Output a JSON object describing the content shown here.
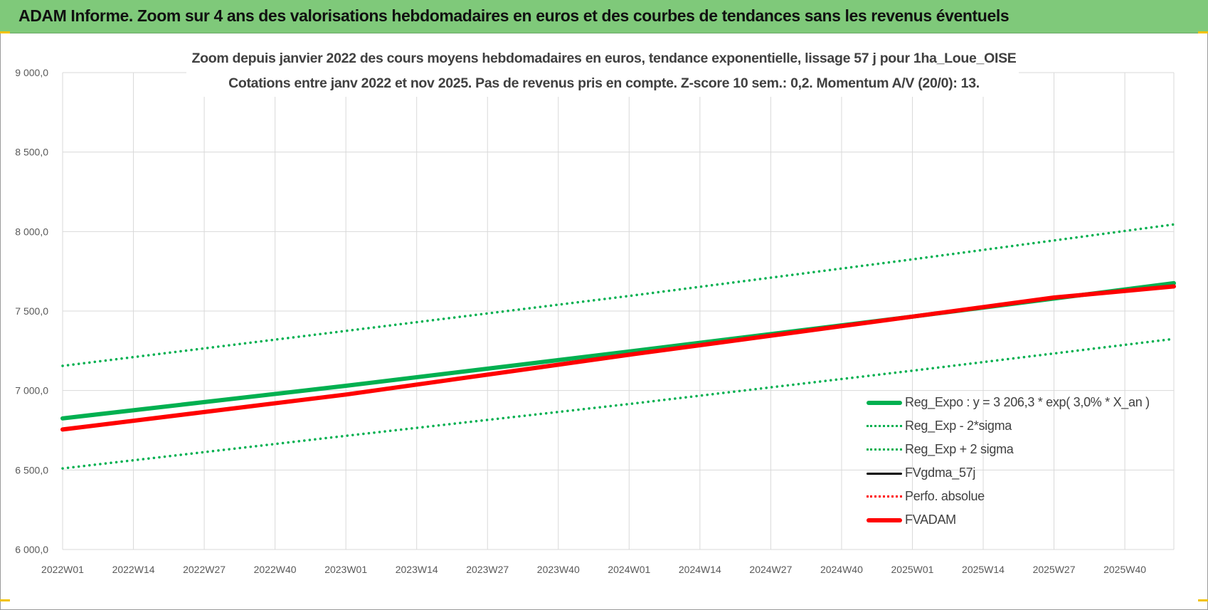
{
  "banner": {
    "title": "ADAM Informe. Zoom sur 4 ans des valorisations hebdomadaires en euros et des courbes de tendances sans les revenus éventuels"
  },
  "colors": {
    "banner": "#7fc97a",
    "green": "#00b050",
    "red": "#ff0000",
    "black": "#000000",
    "grid": "#d9d9d9"
  },
  "chart_data": {
    "type": "line",
    "title_line1": "Zoom depuis janvier 2022 des cours moyens hebdomadaires en euros, tendance exponentielle, lissage 57 j pour 1ha_Loue_OISE",
    "title_line2": "Cotations entre janv 2022 et nov 2025. Pas de revenus pris en compte. Z-score 10 sem.: 0,2. Momentum A/V (20/0): 13.",
    "xlabel": "",
    "ylabel": "",
    "ylim": [
      6000,
      9000
    ],
    "yticks": [
      "9 000,0",
      "8 500,0",
      "8 000,0",
      "7 500,0",
      "7 000,0",
      "6 500,0",
      "6 000,0"
    ],
    "ytick_values": [
      9000,
      8500,
      8000,
      7500,
      7000,
      6500,
      6000
    ],
    "x_tick_labels": [
      "2022W01",
      "2022W14",
      "2022W27",
      "2022W40",
      "2023W01",
      "2023W14",
      "2023W27",
      "2023W40",
      "2024W01",
      "2024W14",
      "2024W27",
      "2024W40",
      "2025W01",
      "2025W14",
      "2025W27",
      "2025W40"
    ],
    "x_tick_week_index": [
      0,
      13,
      26,
      39,
      52,
      65,
      78,
      91,
      104,
      117,
      130,
      143,
      156,
      169,
      182,
      195
    ],
    "x_range_weeks": [
      0,
      204
    ],
    "grid": true,
    "legend_position": "bottom-right",
    "series": [
      {
        "name": "Reg_Expo : y = 3 206,3 * exp( 3,0% *  X_an )",
        "style": "solid-thick",
        "color": "#00b050",
        "x": [
          0,
          52,
          104,
          156,
          204
        ],
        "y": [
          6825,
          7030,
          7245,
          7465,
          7675
        ]
      },
      {
        "name": "Reg_Exp - 2*sigma",
        "style": "dotted",
        "color": "#00b050",
        "x": [
          0,
          52,
          104,
          156,
          204
        ],
        "y": [
          6510,
          6715,
          6915,
          7125,
          7325
        ]
      },
      {
        "name": "Reg_Exp + 2 sigma",
        "style": "dotted",
        "color": "#00b050",
        "x": [
          0,
          52,
          104,
          156,
          204
        ],
        "y": [
          7155,
          7375,
          7595,
          7825,
          8045
        ]
      },
      {
        "name": "FVgdma_57j",
        "style": "solid",
        "color": "#000000",
        "x": [],
        "y": []
      },
      {
        "name": "Perfo. absolue",
        "style": "dotted",
        "color": "#ff0000",
        "x": [],
        "y": []
      },
      {
        "name": "FVADAM",
        "style": "solid-thick",
        "color": "#ff0000",
        "x": [
          0,
          52,
          104,
          130,
          156,
          182,
          204
        ],
        "y": [
          6755,
          6975,
          7225,
          7345,
          7465,
          7585,
          7655
        ]
      }
    ]
  }
}
